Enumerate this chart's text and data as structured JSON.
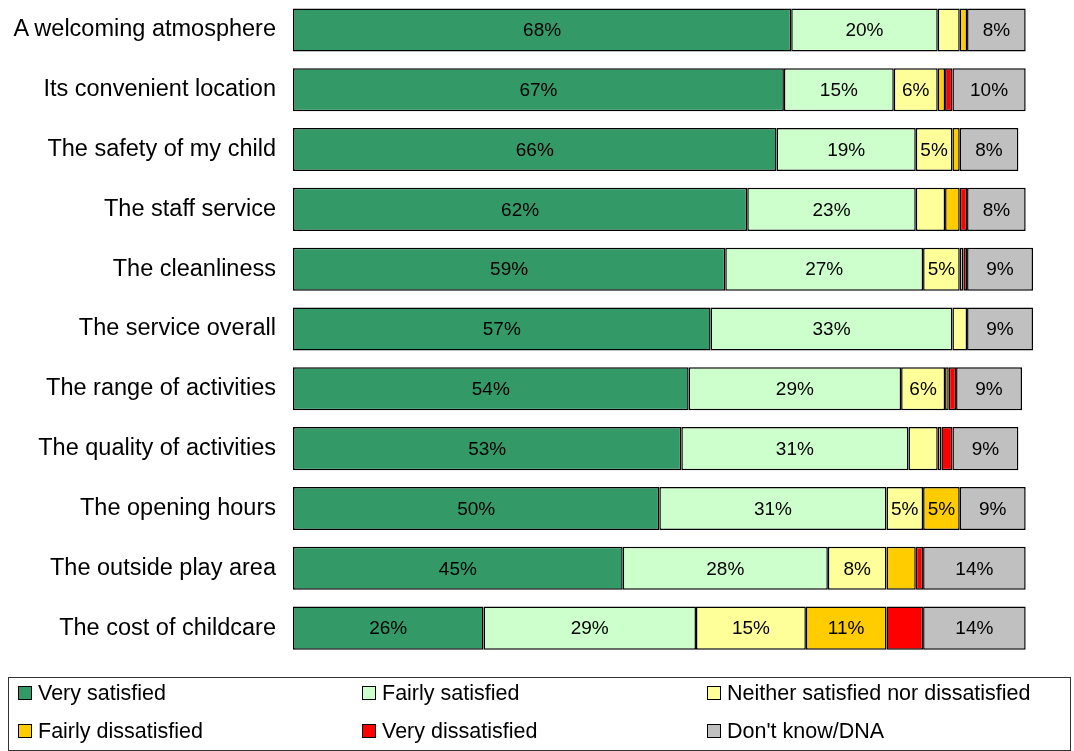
{
  "chart_data": {
    "type": "bar",
    "orientation": "horizontal",
    "stacked": true,
    "legend": "bottom",
    "categories": [
      "A welcoming atmosphere",
      "Its convenient location",
      "The safety of my child",
      "The staff service",
      "The cleanliness",
      "The service overall",
      "The range of activities",
      "The quality of activities",
      "The opening hours",
      "The outside play area",
      "The cost of childcare"
    ],
    "series": [
      {
        "name": "Very satisfied",
        "color": "#339966",
        "values": [
          68,
          67,
          66,
          62,
          59,
          57,
          54,
          53,
          50,
          45,
          26
        ],
        "value_labels": [
          "68%",
          "67%",
          "66%",
          "62%",
          "59%",
          "57%",
          "54%",
          "53%",
          "50%",
          "45%",
          "26%"
        ]
      },
      {
        "name": "Fairly satisfied",
        "color": "#ccffcc",
        "values": [
          20,
          15,
          19,
          23,
          27,
          33,
          29,
          31,
          31,
          28,
          29
        ],
        "value_labels": [
          "20%",
          "15%",
          "19%",
          "23%",
          "27%",
          "33%",
          "29%",
          "31%",
          "31%",
          "28%",
          "29%"
        ]
      },
      {
        "name": "Neither satisfied nor dissatisfied",
        "color": "#ffff99",
        "values": [
          3,
          6,
          5,
          4,
          5,
          2,
          6,
          4,
          5,
          8,
          15
        ],
        "value_labels": [
          null,
          "6%",
          "5%",
          null,
          "5%",
          null,
          "6%",
          null,
          "5%",
          "8%",
          "15%"
        ]
      },
      {
        "name": "Fairly dissatisfied",
        "color": "#ffcc00",
        "values": [
          1,
          1,
          1,
          2,
          0.5,
          null,
          0.5,
          0.5,
          5,
          4,
          11
        ],
        "value_labels": [
          null,
          null,
          null,
          null,
          null,
          null,
          null,
          null,
          "5%",
          null,
          "11%"
        ]
      },
      {
        "name": "Very dissatisfied",
        "color": "#ff0000",
        "values": [
          null,
          1,
          null,
          1,
          0.5,
          null,
          1,
          1.5,
          null,
          1,
          5
        ]
      },
      {
        "name": "Don't know/DNA",
        "color": "#c0c0c0",
        "values": [
          8,
          10,
          8,
          8,
          9,
          9,
          9,
          9,
          9,
          14,
          14
        ],
        "value_labels": [
          "8%",
          "10%",
          "8%",
          "8%",
          "9%",
          "9%",
          "9%",
          "9%",
          "9%",
          "14%",
          "14%"
        ]
      }
    ]
  }
}
